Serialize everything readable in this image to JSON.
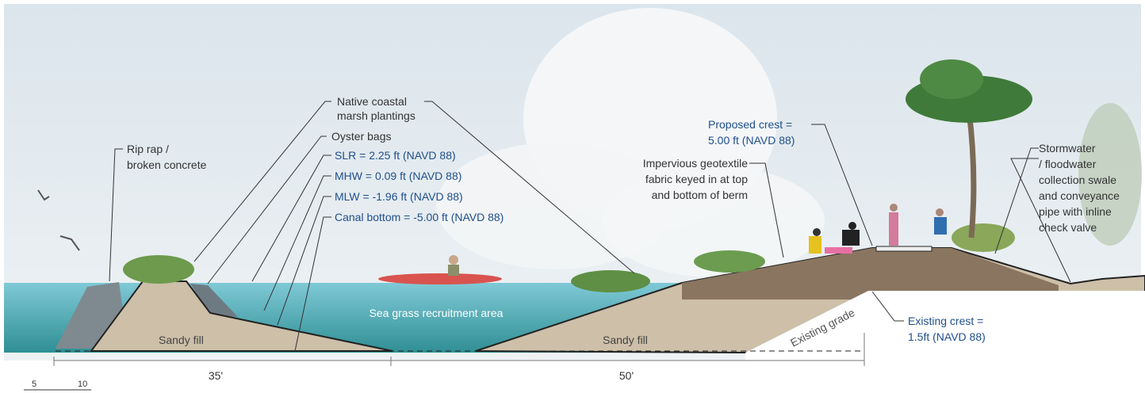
{
  "callouts": [
    {
      "lines": [
        "Rip rap /",
        "broken concrete"
      ]
    },
    {
      "lines": [
        "Native coastal",
        "marsh plantings"
      ]
    },
    {
      "lines": [
        "Oyster bags"
      ]
    },
    {
      "lines": [
        "SLR = 2.25 ft (NAVD 88)"
      ]
    },
    {
      "lines": [
        "MHW = 0.09 ft (NAVD 88)"
      ]
    },
    {
      "lines": [
        "MLW = -1.96 ft (NAVD 88)"
      ]
    },
    {
      "lines": [
        "Canal bottom = -5.00 ft (NAVD 88)"
      ]
    },
    {
      "lines": [
        "Proposed crest =",
        "5.00 ft (NAVD 88)"
      ]
    },
    {
      "lines": [
        "Impervious geotextile",
        "fabric keyed in at top",
        "and bottom of berm"
      ]
    },
    {
      "lines": [
        "Stormwater",
        "/ floodwater",
        "collection swale",
        "and conveyance",
        "pipe with inline",
        "check valve"
      ]
    },
    {
      "lines": [
        "Existing crest =",
        "1.5ft (NAVD 88)"
      ]
    }
  ],
  "areas": [
    "Sea grass recruitment area",
    "Sandy fill",
    "Sandy fill",
    "Existing grade"
  ],
  "dimensions": [
    "35'",
    "50'"
  ],
  "scale": [
    "5",
    "10"
  ]
}
